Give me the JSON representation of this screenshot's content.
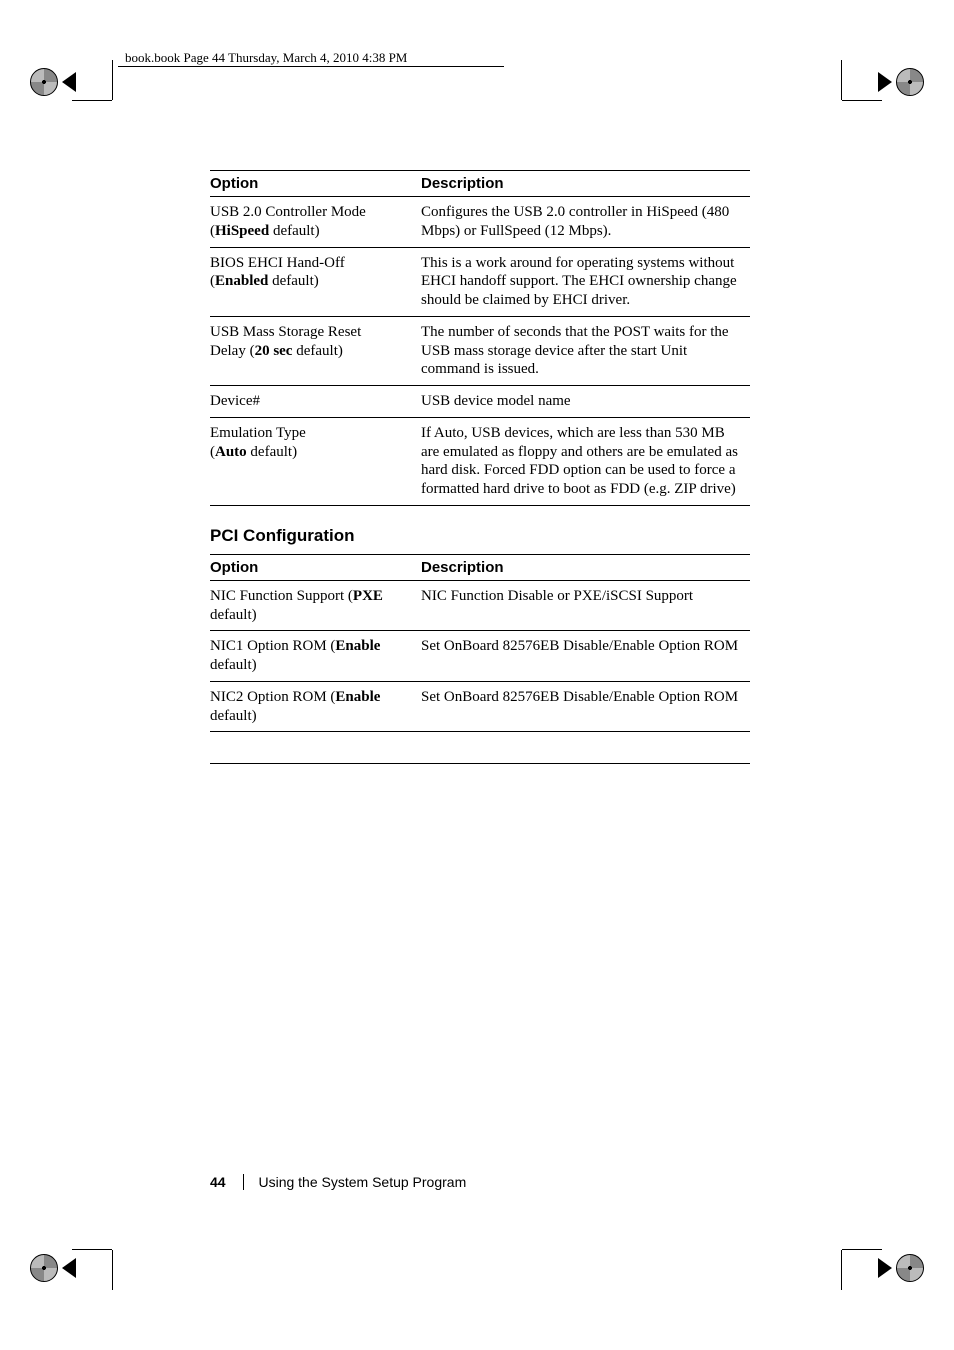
{
  "header": {
    "text": "book.book  Page 44  Thursday, March 4, 2010  4:38 PM"
  },
  "table1": {
    "head_option": "Option",
    "head_description": "Description",
    "rows": [
      {
        "opt_line1": "USB 2.0 Controller Mode",
        "opt_line2_pre": "(",
        "opt_line2_bold": "HiSpeed",
        "opt_line2_post": " default)",
        "desc": "Configures the USB 2.0 controller in HiSpeed (480 Mbps) or FullSpeed (12 Mbps)."
      },
      {
        "opt_line1": "BIOS EHCI Hand-Off",
        "opt_line2_pre": "(",
        "opt_line2_bold": "Enabled",
        "opt_line2_post": " default)",
        "desc": "This is a work around for operating systems without EHCI handoff support. The EHCI ownership change should be claimed by EHCI driver."
      },
      {
        "opt_line1": "USB Mass Storage Reset",
        "opt_line2_pre": "Delay (",
        "opt_line2_bold": "20 sec",
        "opt_line2_post": " default)",
        "desc": "The number of seconds that the POST waits for the USB mass storage device after the start Unit command is issued."
      },
      {
        "opt_line1": "Device#",
        "opt_line2_pre": "",
        "opt_line2_bold": "",
        "opt_line2_post": "",
        "desc": "USB device model name"
      },
      {
        "opt_line1": "Emulation Type",
        "opt_line2_pre": "(",
        "opt_line2_bold": "Auto",
        "opt_line2_post": " default)",
        "desc": "If Auto, USB devices, which are less than 530 MB are emulated as floppy and others are be emulated as hard disk. Forced FDD option can be used to force a formatted hard drive to boot as FDD (e.g. ZIP drive)"
      }
    ]
  },
  "section_title": "PCI Configuration",
  "table2": {
    "head_option": "Option",
    "head_description": "Description",
    "rows": [
      {
        "opt_pre": "NIC Function Support (",
        "opt_bold": "PXE",
        "opt_post": " default)",
        "desc": "NIC Function Disable or PXE/iSCSI Support"
      },
      {
        "opt_pre": "NIC1 Option ROM (",
        "opt_bold": "Enable",
        "opt_post": " default)",
        "desc": "Set OnBoard 82576EB Disable/Enable Option ROM"
      },
      {
        "opt_pre": "NIC2 Option ROM (",
        "opt_bold": "Enable",
        "opt_post": " default)",
        "desc": "Set OnBoard 82576EB Disable/Enable Option ROM"
      }
    ]
  },
  "footer": {
    "page": "44",
    "section": "Using the System Setup Program"
  }
}
